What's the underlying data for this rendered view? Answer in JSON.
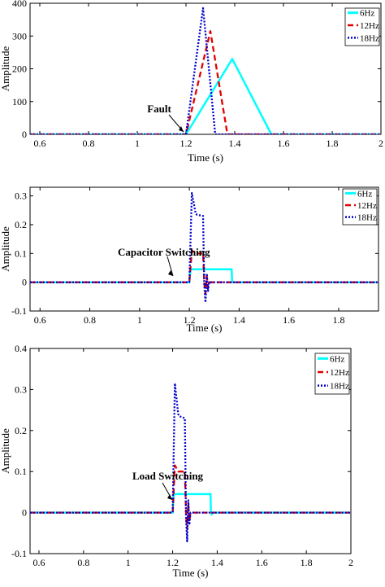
{
  "chart_data": [
    {
      "type": "line",
      "xlabel": "Time (s)",
      "ylabel": "Amplitude",
      "xlim": [
        0.56,
        2
      ],
      "ylim": [
        0,
        400
      ],
      "xticks": [
        "0.6",
        "0.8",
        "1",
        "1.2",
        "1.4",
        "1.6",
        "1.8",
        "2"
      ],
      "yticks": [
        "0",
        "100",
        "200",
        "300",
        "400"
      ],
      "grid": false,
      "legend": "top-right",
      "annotation": {
        "text": "Fault",
        "x": 1.2,
        "y": 0
      },
      "series": [
        {
          "name": "6Hz",
          "color": "#00ffff",
          "style": "solid",
          "x": [
            0.56,
            1.2,
            1.39,
            1.55,
            2.0
          ],
          "y": [
            0,
            0,
            230,
            0,
            0
          ]
        },
        {
          "name": "12Hz",
          "color": "#e00000",
          "style": "dashed",
          "x": [
            0.56,
            1.2,
            1.3,
            1.37,
            2.0
          ],
          "y": [
            0,
            0,
            315,
            0,
            0
          ]
        },
        {
          "name": "18Hz",
          "color": "#0000cc",
          "style": "dotted",
          "x": [
            0.56,
            1.2,
            1.27,
            1.32,
            2.0
          ],
          "y": [
            0,
            0,
            385,
            0,
            0
          ]
        }
      ]
    },
    {
      "type": "line",
      "xlabel": "Time (s)",
      "ylabel": "Amplitude",
      "xlim": [
        0.56,
        1.96
      ],
      "ylim": [
        -0.1,
        0.33
      ],
      "xticks": [
        "0.6",
        "0.8",
        "1",
        "1.2",
        "1.4",
        "1.6",
        "1.8"
      ],
      "yticks": [
        "-0.1",
        "0",
        "0.1",
        "0.2",
        "0.3"
      ],
      "grid": false,
      "legend": "top-right",
      "annotation": {
        "text": "Capacitor Switching",
        "x": 1.2,
        "y": 0
      },
      "series": [
        {
          "name": "6Hz",
          "color": "#00ffff",
          "style": "solid",
          "x": [
            0.56,
            1.2,
            1.205,
            1.37,
            1.372,
            1.96
          ],
          "y": [
            0,
            0,
            0.045,
            0.045,
            0,
            0
          ]
        },
        {
          "name": "12Hz",
          "color": "#e00000",
          "style": "dashed",
          "x": [
            0.56,
            1.2,
            1.21,
            1.225,
            1.23,
            1.255,
            1.26,
            1.265,
            1.27,
            1.275,
            1.28,
            1.96
          ],
          "y": [
            0,
            0,
            0.11,
            0.1,
            0.1,
            0.1,
            0.0,
            -0.04,
            0.02,
            -0.02,
            0,
            0
          ]
        },
        {
          "name": "18Hz",
          "color": "#0000cc",
          "style": "dotted",
          "x": [
            0.56,
            1.2,
            1.21,
            1.225,
            1.23,
            1.255,
            1.26,
            1.265,
            1.27,
            1.275,
            1.28,
            1.96
          ],
          "y": [
            0,
            0,
            0.31,
            0.24,
            0.235,
            0.23,
            -0.01,
            -0.07,
            0.03,
            -0.03,
            0,
            0
          ]
        }
      ]
    },
    {
      "type": "line",
      "xlabel": "Time (s)",
      "ylabel": "Amplitude",
      "xlim": [
        0.56,
        2
      ],
      "ylim": [
        -0.1,
        0.4
      ],
      "xticks": [
        "0.6",
        "0.8",
        "1",
        "1.2",
        "1.4",
        "1.6",
        "1.8",
        "2"
      ],
      "yticks": [
        "-0.1",
        "0",
        "0.1",
        "0.2",
        "0.3",
        "0.4"
      ],
      "grid": false,
      "legend": "top-right",
      "annotation": {
        "text": "Load Switching",
        "x": 1.2,
        "y": 0
      },
      "series": [
        {
          "name": "6Hz",
          "color": "#00ffff",
          "style": "solid",
          "x": [
            0.56,
            1.2,
            1.205,
            1.37,
            1.372,
            1.375,
            1.38,
            2.0
          ],
          "y": [
            0,
            0,
            0.045,
            0.045,
            0,
            -0.005,
            0,
            0
          ]
        },
        {
          "name": "12Hz",
          "color": "#e00000",
          "style": "dashed",
          "x": [
            0.56,
            1.2,
            1.21,
            1.225,
            1.23,
            1.255,
            1.26,
            1.265,
            1.27,
            1.275,
            1.28,
            2.0
          ],
          "y": [
            0,
            0,
            0.115,
            0.1,
            0.1,
            0.1,
            0.0,
            -0.04,
            0.02,
            -0.02,
            0,
            0
          ]
        },
        {
          "name": "18Hz",
          "color": "#0000cc",
          "style": "dotted",
          "x": [
            0.56,
            1.2,
            1.21,
            1.225,
            1.23,
            1.255,
            1.26,
            1.265,
            1.27,
            1.275,
            1.28,
            2.0
          ],
          "y": [
            0,
            0,
            0.315,
            0.24,
            0.235,
            0.23,
            -0.01,
            -0.07,
            0.03,
            -0.03,
            0,
            0
          ]
        }
      ]
    }
  ]
}
